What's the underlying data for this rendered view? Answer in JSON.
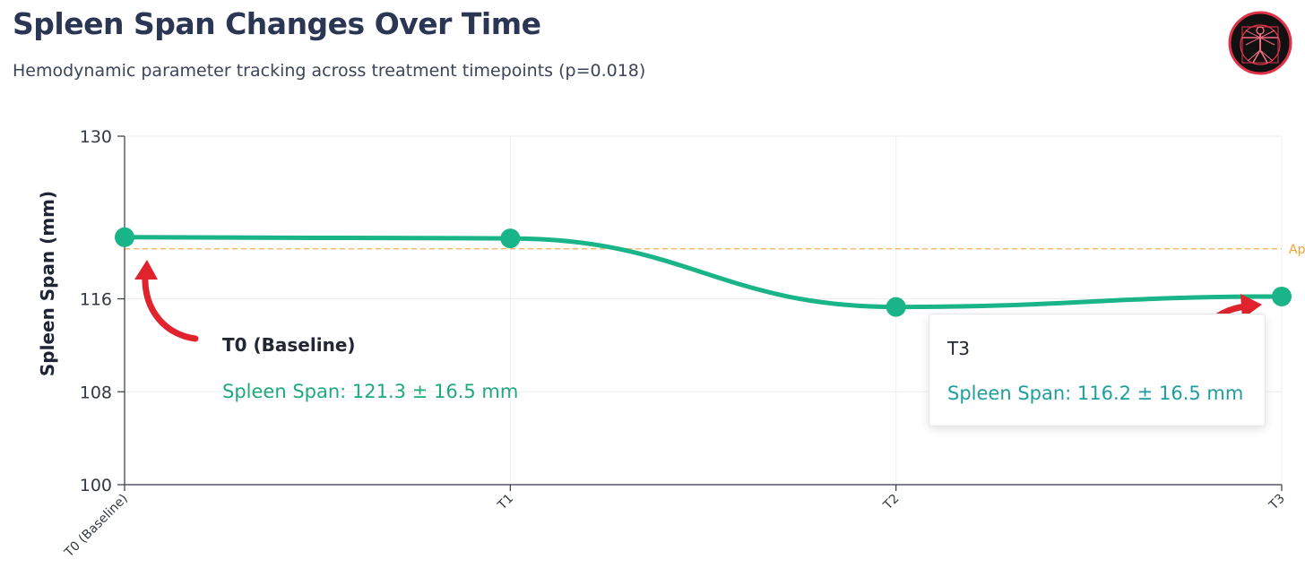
{
  "header": {
    "title": "Spleen Span Changes Over Time",
    "subtitle": "Hemodynamic parameter tracking across treatment timepoints (p=0.018)"
  },
  "logo": {
    "icon": "vitruvian-man-icon",
    "background": "#111111",
    "ring_color": "#e0334a"
  },
  "chart_data": {
    "type": "line",
    "title": "Spleen Span Changes Over Time",
    "subtitle": "Hemodynamic parameter tracking across treatment timepoints (p=0.018)",
    "xlabel": "",
    "ylabel": "Spleen Span (mm)",
    "categories": [
      "T0 (Baseline)",
      "T1",
      "T2",
      "T3"
    ],
    "series": [
      {
        "name": "Spleen Span",
        "values": [
          121.3,
          121.2,
          115.3,
          116.2
        ],
        "color": "#19b487"
      }
    ],
    "ylim": [
      100,
      130
    ],
    "yticks": [
      100,
      108,
      116,
      130
    ],
    "reference_line": {
      "value": 120.3,
      "label": "Ap",
      "color": "#f0a030"
    },
    "grid": true,
    "annotations": [
      {
        "title": "T0 (Baseline)",
        "text": "Spleen Span: 121.3 ± 16.5 mm"
      }
    ],
    "tooltip": {
      "title": "T3",
      "text": "Spleen Span: 116.2 ± 16.5 mm"
    },
    "arrow_color": "#e0232d"
  }
}
